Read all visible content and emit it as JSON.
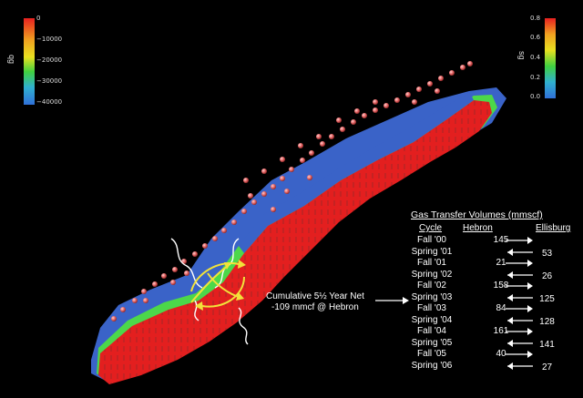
{
  "colorbar_left": {
    "name": "qg",
    "ticks": [
      "0",
      "−10000",
      "−20000",
      "−30000",
      "−40000"
    ]
  },
  "colorbar_right": {
    "name": "sg",
    "ticks": [
      "0.8",
      "0.6",
      "0.4",
      "0.2",
      "0.0"
    ]
  },
  "annotation": {
    "line1": "Cumulative 5½ Year Net",
    "line2": "-109 mmcf @ Hebron"
  },
  "table": {
    "title": "Gas Transfer Volumes (mmscf)",
    "headers": {
      "cycle": "Cycle",
      "hebron": "Hebron",
      "ellisburg": "Ellisburg"
    },
    "rows": [
      {
        "cycle": "Fall '00",
        "hebron": "145",
        "ellisburg": "",
        "direction": "right"
      },
      {
        "cycle": "Spring '01",
        "hebron": "",
        "ellisburg": "53",
        "direction": "left"
      },
      {
        "cycle": "Fall '01",
        "hebron": "21",
        "ellisburg": "",
        "direction": "right"
      },
      {
        "cycle": "Spring '02",
        "hebron": "",
        "ellisburg": "26",
        "direction": "left"
      },
      {
        "cycle": "Fall '02",
        "hebron": "158",
        "ellisburg": "",
        "direction": "right"
      },
      {
        "cycle": "Spring '03",
        "hebron": "",
        "ellisburg": "125",
        "direction": "left"
      },
      {
        "cycle": "Fall '03",
        "hebron": "84",
        "ellisburg": "",
        "direction": "right"
      },
      {
        "cycle": "Spring '04",
        "hebron": "",
        "ellisburg": "128",
        "direction": "left"
      },
      {
        "cycle": "Fall '04",
        "hebron": "161",
        "ellisburg": "",
        "direction": "right"
      },
      {
        "cycle": "Spring '05",
        "hebron": "",
        "ellisburg": "141",
        "direction": "left"
      },
      {
        "cycle": "Fall '05",
        "hebron": "40",
        "ellisburg": "",
        "direction": "right"
      },
      {
        "cycle": "Spring '06",
        "hebron": "",
        "ellisburg": "27",
        "direction": "left"
      }
    ]
  },
  "colors": {
    "reservoir_blue": "#3a63c8",
    "gas_red": "#e31f1f",
    "transition_green": "#4cd84a",
    "well_ball": "#e66a6a"
  }
}
